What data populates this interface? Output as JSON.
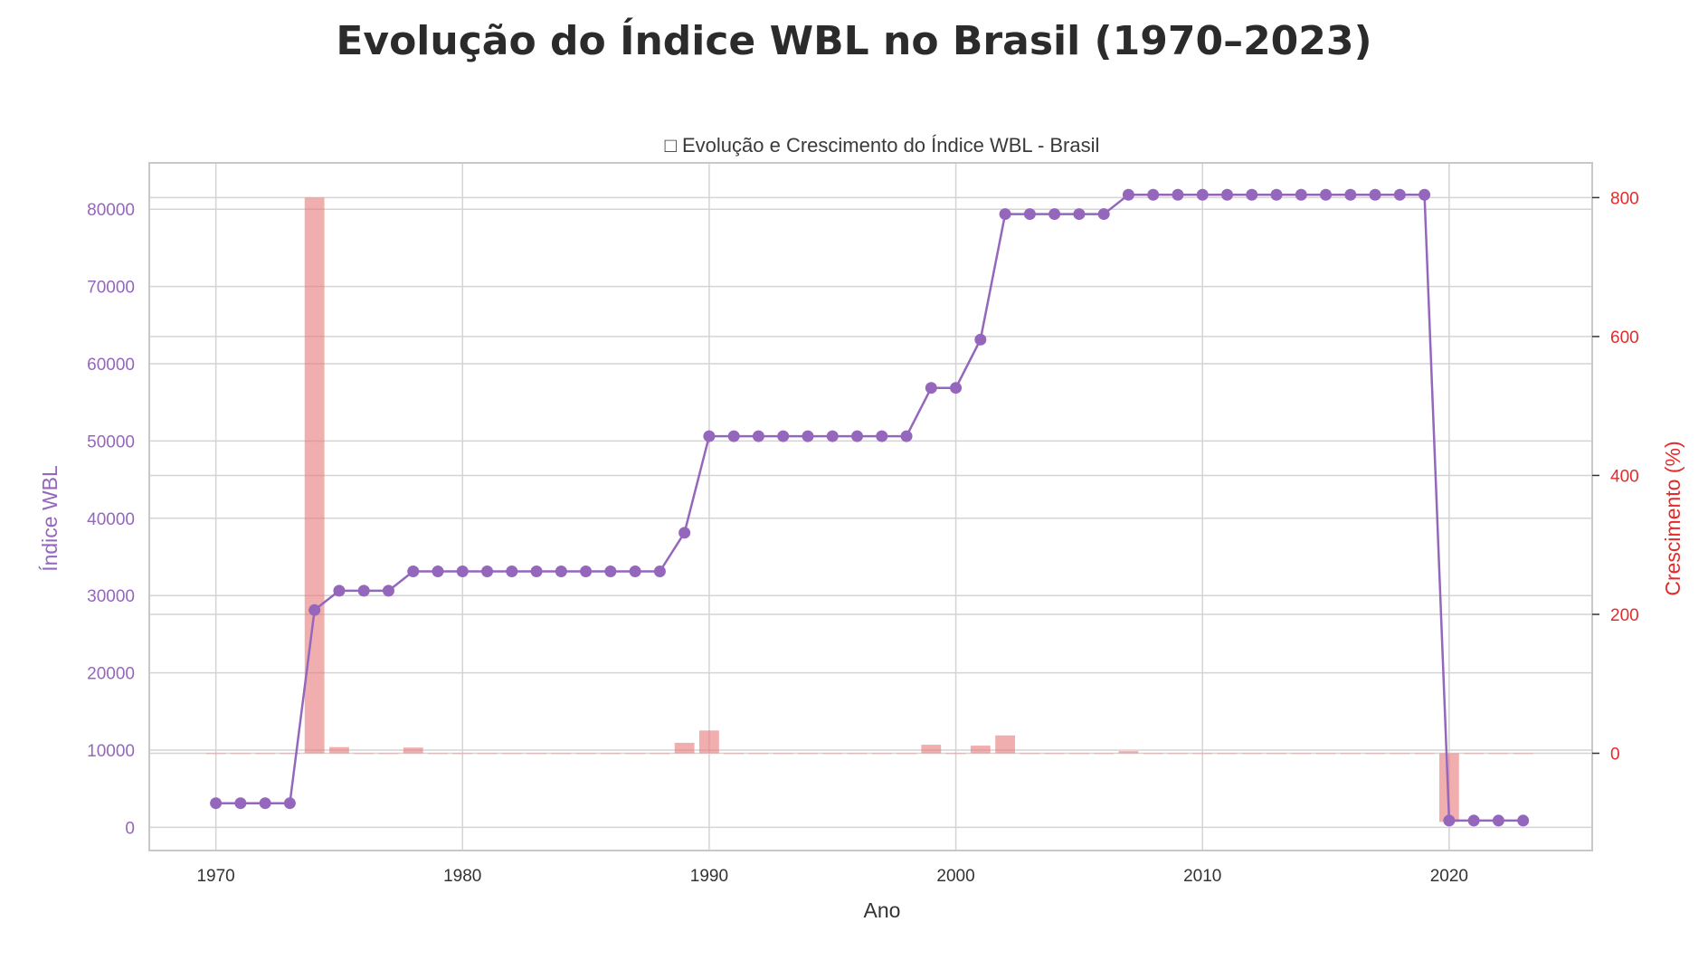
{
  "figure": {
    "title": "Evolução do Índice WBL no Brasil (1970–2023)"
  },
  "chart_data": {
    "type": "line",
    "title": "□ Evolução e Crescimento do Índice WBL - Brasil",
    "xlabel": "Ano",
    "ylabel_left": "Índice WBL",
    "ylabel_right": "Crescimento (%)",
    "xlim": [
      1967.3,
      2025.8
    ],
    "ylim_left": [
      -3000,
      86000
    ],
    "ylim_right": [
      -140,
      850
    ],
    "xticks": [
      1970,
      1980,
      1990,
      2000,
      2010,
      2020
    ],
    "yticks_left": [
      0,
      10000,
      20000,
      30000,
      40000,
      50000,
      60000,
      70000,
      80000
    ],
    "yticks_right": [
      0,
      200,
      400,
      600,
      800
    ],
    "grid": true,
    "colors": {
      "line": "#9467bd",
      "bar": "#e8787a",
      "left_axis": "#9467bd",
      "right_axis": "#e32b2b",
      "grid": "#d4d4d4",
      "frame": "#c8c8c8"
    },
    "series": [
      {
        "name": "Índice WBL",
        "type": "line",
        "axis": "left",
        "x": [
          1970,
          1971,
          1972,
          1973,
          1974,
          1975,
          1976,
          1977,
          1978,
          1979,
          1980,
          1981,
          1982,
          1983,
          1984,
          1985,
          1986,
          1987,
          1988,
          1989,
          1990,
          1991,
          1992,
          1993,
          1994,
          1995,
          1996,
          1997,
          1998,
          1999,
          2000,
          2001,
          2002,
          2003,
          2004,
          2005,
          2006,
          2007,
          2008,
          2009,
          2010,
          2011,
          2012,
          2013,
          2014,
          2015,
          2016,
          2017,
          2018,
          2019,
          2020,
          2021,
          2022,
          2023
        ],
        "values": [
          3125,
          3125,
          3125,
          3125,
          28125,
          30625,
          30625,
          30625,
          33125,
          33125,
          33125,
          33125,
          33125,
          33125,
          33125,
          33125,
          33125,
          33125,
          33125,
          38125,
          50625,
          50625,
          50625,
          50625,
          50625,
          50625,
          50625,
          50625,
          50625,
          56875,
          56875,
          63125,
          79375,
          79375,
          79375,
          79375,
          79375,
          81875,
          81875,
          81875,
          81875,
          81875,
          81875,
          81875,
          81875,
          81875,
          81875,
          81875,
          81875,
          81875,
          875,
          875,
          875,
          875
        ]
      },
      {
        "name": "Crescimento (%)",
        "type": "bar",
        "axis": "right",
        "x": [
          1970,
          1971,
          1972,
          1973,
          1974,
          1975,
          1976,
          1977,
          1978,
          1979,
          1980,
          1981,
          1982,
          1983,
          1984,
          1985,
          1986,
          1987,
          1988,
          1989,
          1990,
          1991,
          1992,
          1993,
          1994,
          1995,
          1996,
          1997,
          1998,
          1999,
          2000,
          2001,
          2002,
          2003,
          2004,
          2005,
          2006,
          2007,
          2008,
          2009,
          2010,
          2011,
          2012,
          2013,
          2014,
          2015,
          2016,
          2017,
          2018,
          2019,
          2020,
          2021,
          2022,
          2023
        ],
        "values": [
          0,
          0,
          0,
          0,
          800,
          8.9,
          0,
          0,
          8.2,
          0,
          0,
          0,
          0,
          0,
          0,
          0,
          0,
          0,
          0,
          15.1,
          32.8,
          0,
          0,
          0,
          0,
          0,
          0,
          0,
          0,
          12.3,
          0,
          11,
          25.7,
          0,
          0,
          0,
          0,
          3.1,
          0,
          0,
          0,
          0,
          0,
          0,
          0,
          0,
          0,
          0,
          0,
          0,
          -98.9,
          0,
          0,
          0
        ]
      }
    ]
  }
}
